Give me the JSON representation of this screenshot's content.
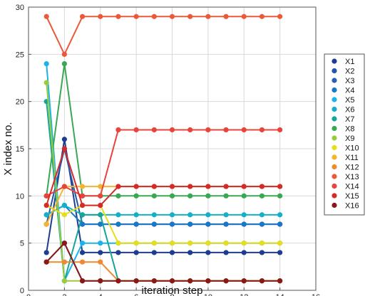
{
  "chart_data": {
    "type": "line",
    "xlabel": "iteration step",
    "ylabel": "X index no.",
    "xlim": [
      0,
      16
    ],
    "ylim": [
      0,
      30
    ],
    "xticks": [
      0,
      2,
      4,
      6,
      8,
      10,
      12,
      14,
      16
    ],
    "yticks": [
      0,
      5,
      10,
      15,
      20,
      25,
      30
    ],
    "grid": true,
    "legend_position": "right",
    "x": [
      1,
      2,
      3,
      4,
      5,
      6,
      7,
      8,
      9,
      10,
      11,
      12,
      13,
      14
    ],
    "series": [
      {
        "name": "X1",
        "color": "#1f3d8f",
        "values": [
          4,
          16,
          4,
          4,
          4,
          4,
          4,
          4,
          4,
          4,
          4,
          4,
          4,
          4
        ]
      },
      {
        "name": "X2",
        "color": "#2456a6",
        "values": [
          7,
          15,
          7,
          7,
          7,
          7,
          7,
          7,
          7,
          7,
          7,
          7,
          7,
          7
        ]
      },
      {
        "name": "X3",
        "color": "#2a5fb0",
        "values": [
          3,
          5,
          1,
          1,
          1,
          1,
          1,
          1,
          1,
          1,
          1,
          1,
          1,
          1
        ]
      },
      {
        "name": "X4",
        "color": "#1a76c8",
        "values": [
          8,
          9,
          7,
          7,
          7,
          7,
          7,
          7,
          7,
          7,
          7,
          7,
          7,
          7
        ]
      },
      {
        "name": "X5",
        "color": "#1cb4e8",
        "values": [
          24,
          1,
          5,
          5,
          5,
          5,
          5,
          5,
          5,
          5,
          5,
          5,
          5,
          5
        ]
      },
      {
        "name": "X6",
        "color": "#14b0c8",
        "values": [
          8,
          9,
          8,
          8,
          8,
          8,
          8,
          8,
          8,
          8,
          8,
          8,
          8,
          8
        ]
      },
      {
        "name": "X7",
        "color": "#16a596",
        "values": [
          20,
          1,
          8,
          8,
          1,
          1,
          1,
          1,
          1,
          1,
          1,
          1,
          1,
          1
        ]
      },
      {
        "name": "X8",
        "color": "#3aa853",
        "values": [
          10,
          24,
          10,
          10,
          10,
          10,
          10,
          10,
          10,
          10,
          10,
          10,
          10,
          10
        ]
      },
      {
        "name": "X9",
        "color": "#9ccb3a",
        "values": [
          22,
          1,
          1,
          1,
          1,
          1,
          1,
          1,
          1,
          1,
          1,
          1,
          1,
          1
        ]
      },
      {
        "name": "X10",
        "color": "#e6de1a",
        "values": [
          9,
          8,
          9,
          9,
          5,
          5,
          5,
          5,
          5,
          5,
          5,
          5,
          5,
          5
        ]
      },
      {
        "name": "X11",
        "color": "#f6b42e",
        "values": [
          7,
          11,
          11,
          11,
          11,
          11,
          11,
          11,
          11,
          11,
          11,
          11,
          11,
          11
        ]
      },
      {
        "name": "X12",
        "color": "#ef8a30",
        "values": [
          3,
          3,
          3,
          3,
          1,
          1,
          1,
          1,
          1,
          1,
          1,
          1,
          1,
          1
        ]
      },
      {
        "name": "X13",
        "color": "#ea5a3a",
        "values": [
          29,
          25,
          29,
          29,
          29,
          29,
          29,
          29,
          29,
          29,
          29,
          29,
          29,
          29
        ]
      },
      {
        "name": "X14",
        "color": "#e8443c",
        "values": [
          10,
          11,
          10,
          10,
          17,
          17,
          17,
          17,
          17,
          17,
          17,
          17,
          17,
          17
        ]
      },
      {
        "name": "X15",
        "color": "#d42a2a",
        "values": [
          9,
          15,
          9,
          9,
          11,
          11,
          11,
          11,
          11,
          11,
          11,
          11,
          11,
          11
        ]
      },
      {
        "name": "X16",
        "color": "#8a1818",
        "values": [
          3,
          5,
          1,
          1,
          1,
          1,
          1,
          1,
          1,
          1,
          1,
          1,
          1,
          1
        ]
      }
    ]
  }
}
